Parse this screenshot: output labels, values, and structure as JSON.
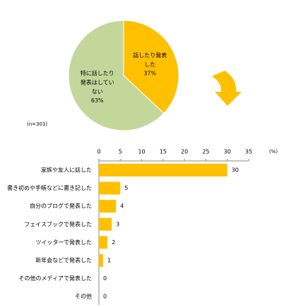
{
  "chart_data": [
    {
      "type": "pie",
      "categories": [
        "話したり発表した",
        "特に話したり発表はしていない"
      ],
      "values": [
        37,
        63
      ],
      "value_labels": [
        "37%",
        "63%"
      ],
      "colors": [
        "#ffc000",
        "#c4d79b"
      ],
      "note": "(n=301)"
    },
    {
      "type": "hbar",
      "categories": [
        "家族や友人に話した",
        "書き初めや手帳などに書き記した",
        "自分のブログで発表した",
        "フェイスブックで発表した",
        "ツイッターで発表した",
        "新年会などで発表した",
        "その他のメディアで発表した",
        "その他"
      ],
      "values": [
        30,
        5,
        4,
        3,
        2,
        1,
        0,
        0
      ],
      "color": "#ffc000",
      "xlim": [
        0,
        35
      ],
      "xticks": [
        0,
        5,
        10,
        15,
        20,
        25,
        30,
        35
      ],
      "xlabel": "(%)"
    }
  ]
}
